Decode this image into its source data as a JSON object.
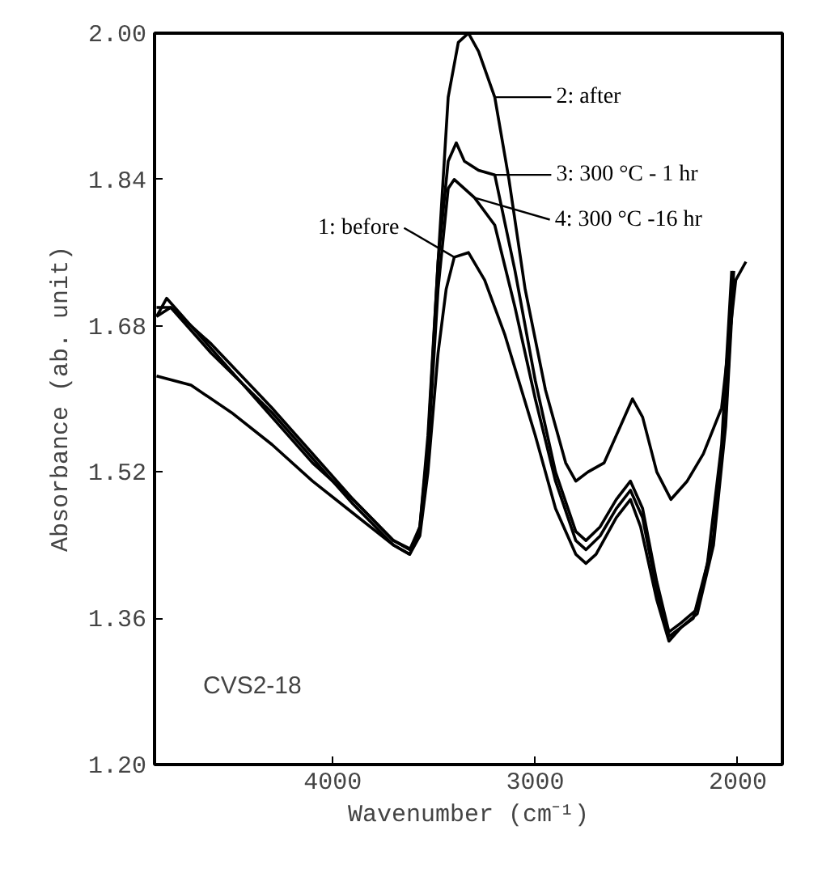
{
  "chart_data": {
    "type": "line",
    "xlabel": "Wavenumber (cm⁻¹)",
    "ylabel": "Absorbance (ab. unit)",
    "xlim": [
      4880,
      1780
    ],
    "ylim": [
      1.2,
      2.0
    ],
    "xticks": [
      4000,
      3000,
      2000
    ],
    "yticks": [
      {
        "value": 1.2,
        "label": "1.20"
      },
      {
        "value": 1.36,
        "label": "1.36"
      },
      {
        "value": 1.52,
        "label": "1.52"
      },
      {
        "value": 1.68,
        "label": "1.68"
      },
      {
        "value": 1.84,
        "label": "1.84"
      },
      {
        "value": 2.0,
        "label": "2.00"
      }
    ],
    "grid": false,
    "legend": "top right",
    "line_style": "solid",
    "marker": "none",
    "annotations": [
      "CVS2-18"
    ],
    "series": [
      {
        "name": "1: before",
        "color": "#000000",
        "x": [
          4870,
          4700,
          4500,
          4300,
          4100,
          3900,
          3700,
          3620,
          3570,
          3530,
          3480,
          3440,
          3400,
          3330,
          3250,
          3150,
          3000,
          2900,
          2800,
          2750,
          2700,
          2600,
          2530,
          2480,
          2400,
          2340,
          2280,
          2220,
          2150,
          2080,
          2030
        ],
        "values": [
          1.625,
          1.615,
          1.585,
          1.55,
          1.51,
          1.475,
          1.44,
          1.43,
          1.45,
          1.52,
          1.65,
          1.72,
          1.755,
          1.76,
          1.73,
          1.67,
          1.56,
          1.48,
          1.43,
          1.42,
          1.43,
          1.47,
          1.49,
          1.46,
          1.38,
          1.335,
          1.35,
          1.36,
          1.42,
          1.55,
          1.74
        ]
      },
      {
        "name": "2: after",
        "color": "#000000",
        "x": [
          4870,
          4820,
          4700,
          4500,
          4300,
          4100,
          3900,
          3700,
          3610,
          3570,
          3530,
          3480,
          3430,
          3380,
          3330,
          3280,
          3200,
          3130,
          3050,
          2950,
          2850,
          2800,
          2740,
          2660,
          2580,
          2520,
          2470,
          2400,
          2330,
          2250,
          2170,
          2080,
          2010,
          1960
        ],
        "values": [
          1.69,
          1.71,
          1.68,
          1.63,
          1.58,
          1.53,
          1.49,
          1.445,
          1.435,
          1.46,
          1.55,
          1.75,
          1.93,
          1.99,
          2.0,
          1.98,
          1.93,
          1.84,
          1.72,
          1.61,
          1.53,
          1.51,
          1.52,
          1.53,
          1.57,
          1.6,
          1.58,
          1.52,
          1.49,
          1.51,
          1.54,
          1.59,
          1.73,
          1.75
        ]
      },
      {
        "name": "3: 300 °C - 1 hr",
        "color": "#000000",
        "x": [
          4870,
          4800,
          4600,
          4300,
          4100,
          3900,
          3700,
          3620,
          3570,
          3530,
          3480,
          3430,
          3390,
          3350,
          3280,
          3200,
          3100,
          3000,
          2900,
          2800,
          2750,
          2680,
          2600,
          2530,
          2470,
          2400,
          2340,
          2280,
          2200,
          2120,
          2060,
          2020
        ],
        "values": [
          1.7,
          1.7,
          1.66,
          1.59,
          1.54,
          1.49,
          1.445,
          1.435,
          1.46,
          1.56,
          1.75,
          1.86,
          1.88,
          1.86,
          1.85,
          1.845,
          1.74,
          1.62,
          1.52,
          1.455,
          1.445,
          1.46,
          1.49,
          1.51,
          1.48,
          1.4,
          1.345,
          1.355,
          1.37,
          1.45,
          1.58,
          1.74
        ]
      },
      {
        "name": "4: 300 °C -16 hr",
        "color": "#000000",
        "x": [
          4870,
          4800,
          4600,
          4300,
          4100,
          3900,
          3700,
          3620,
          3570,
          3530,
          3480,
          3430,
          3400,
          3350,
          3300,
          3200,
          3100,
          3000,
          2900,
          2800,
          2750,
          2680,
          2600,
          2530,
          2470,
          2400,
          2340,
          2280,
          2200,
          2120,
          2060,
          2020
        ],
        "values": [
          1.69,
          1.7,
          1.65,
          1.585,
          1.535,
          1.485,
          1.44,
          1.43,
          1.455,
          1.54,
          1.72,
          1.83,
          1.84,
          1.83,
          1.82,
          1.79,
          1.7,
          1.6,
          1.51,
          1.445,
          1.435,
          1.45,
          1.48,
          1.5,
          1.47,
          1.39,
          1.34,
          1.35,
          1.365,
          1.44,
          1.57,
          1.73
        ]
      }
    ]
  }
}
